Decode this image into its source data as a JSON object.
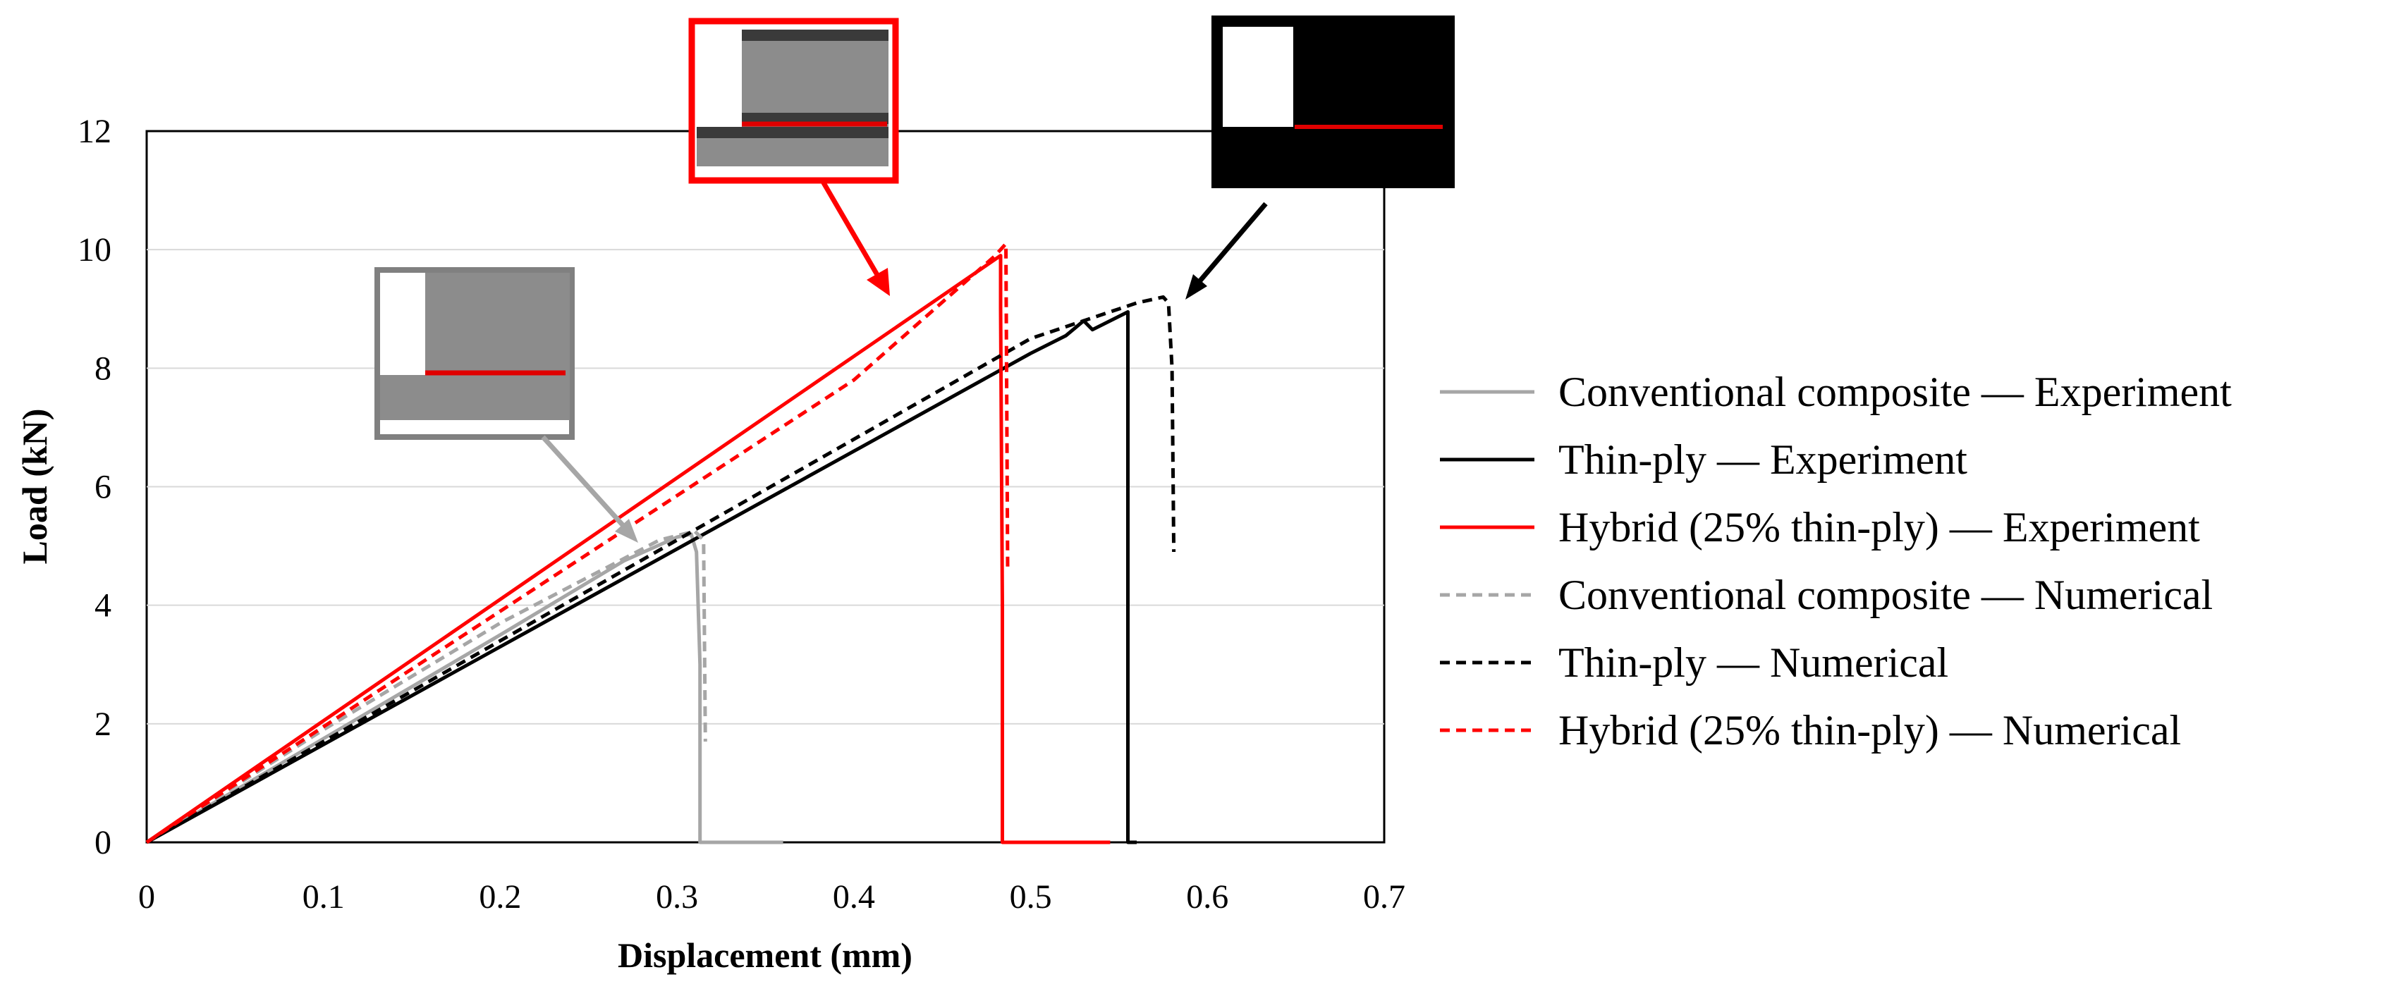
{
  "chart_data": {
    "type": "line",
    "title": "",
    "xlabel": "Displacement (mm)",
    "ylabel": "Load (kN)",
    "xlim": [
      0,
      0.7
    ],
    "ylim": [
      0,
      12
    ],
    "xticks": [
      0,
      0.1,
      0.2,
      0.3,
      0.4,
      0.5,
      0.6,
      0.7
    ],
    "xtick_labels": [
      "0",
      "0.1",
      "0.2",
      "0.3",
      "0.4",
      "0.5",
      "0.6",
      "0.7"
    ],
    "yticks": [
      0,
      2,
      4,
      6,
      8,
      10,
      12
    ],
    "ytick_labels": [
      "0",
      "2",
      "4",
      "6",
      "8",
      "10",
      "12"
    ],
    "grid": "horizontal",
    "legend_position": "right",
    "series": [
      {
        "name": "Conventional composite — Experiment",
        "color": "#a6a6a6",
        "dash": "solid",
        "x": [
          0,
          0.1,
          0.2,
          0.27,
          0.3,
          0.308,
          0.311,
          0.313,
          0.313,
          0.36
        ],
        "y": [
          0,
          1.75,
          3.5,
          4.75,
          5.15,
          5.2,
          4.9,
          3.0,
          0,
          0
        ]
      },
      {
        "name": "Thin-ply — Experiment",
        "color": "#000000",
        "dash": "solid",
        "x": [
          0,
          0.1,
          0.2,
          0.3,
          0.4,
          0.5,
          0.52,
          0.53,
          0.535,
          0.555,
          0.555,
          0.56
        ],
        "y": [
          0,
          1.65,
          3.3,
          4.95,
          6.6,
          8.25,
          8.55,
          8.8,
          8.65,
          8.95,
          0,
          0
        ]
      },
      {
        "name": "Hybrid (25% thin-ply) — Experiment",
        "color": "#ff0000",
        "dash": "solid",
        "x": [
          0,
          0.1,
          0.2,
          0.3,
          0.4,
          0.483,
          0.483,
          0.484,
          0.484,
          0.545
        ],
        "y": [
          0,
          2.05,
          4.1,
          6.15,
          8.2,
          9.9,
          9.0,
          4.0,
          0,
          0
        ]
      },
      {
        "name": "Conventional composite — Numerical",
        "color": "#a6a6a6",
        "dash": "dashed",
        "x": [
          0,
          0.1,
          0.2,
          0.29,
          0.31,
          0.315,
          0.316
        ],
        "y": [
          0,
          1.9,
          3.7,
          5.1,
          5.25,
          5.1,
          1.7
        ]
      },
      {
        "name": "Thin-ply — Numerical",
        "color": "#000000",
        "dash": "dashed",
        "x": [
          0,
          0.1,
          0.2,
          0.3,
          0.4,
          0.5,
          0.56,
          0.575,
          0.578,
          0.58,
          0.581
        ],
        "y": [
          0,
          1.7,
          3.4,
          5.1,
          6.8,
          8.5,
          9.1,
          9.2,
          9.1,
          8.0,
          4.9
        ]
      },
      {
        "name": "Hybrid (25% thin-ply) — Numerical",
        "color": "#ff0000",
        "dash": "dashed",
        "x": [
          0,
          0.1,
          0.2,
          0.3,
          0.4,
          0.48,
          0.486,
          0.487
        ],
        "y": [
          0,
          1.95,
          3.9,
          5.85,
          7.8,
          9.9,
          10.1,
          4.6
        ]
      }
    ]
  }
}
